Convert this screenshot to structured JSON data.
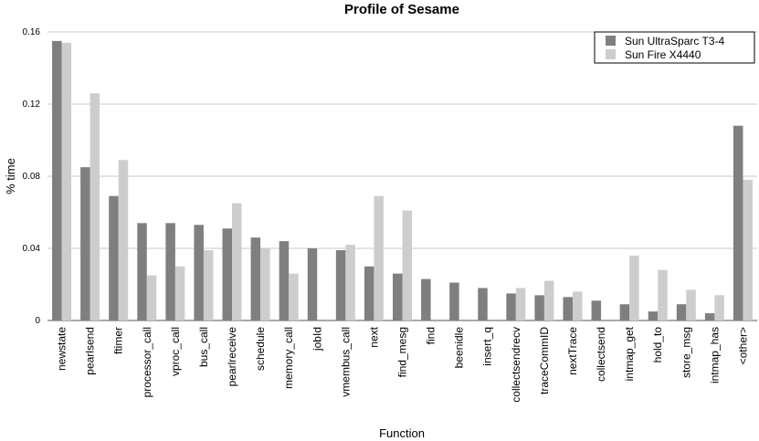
{
  "chart_data": {
    "type": "bar",
    "title": "Profile of Sesame",
    "xlabel": "Function",
    "ylabel": "% time",
    "ylim": [
      0,
      0.16
    ],
    "yticks": [
      0,
      0.04,
      0.08,
      0.12,
      0.16
    ],
    "ytick_labels": [
      "0",
      "0.04",
      "0.08",
      "0.12",
      "0.16"
    ],
    "grid": true,
    "legend_position": "top-right",
    "categories": [
      "newstate",
      "pearlsend",
      "ftimer",
      "processor_call",
      "vproc_call",
      "bus_call",
      "pearlreceive",
      "schedule",
      "memory_call",
      "jobId",
      "vmembus_call",
      "next",
      "find_mesg",
      "find",
      "beenidle",
      "insert_q",
      "collectsendrecv",
      "traceCommID",
      "nextTrace",
      "collectsend",
      "intmap_get",
      "hold_to",
      "store_msg",
      "intmap_has",
      "<other>"
    ],
    "series": [
      {
        "name": "Sun UltraSparc T3-4",
        "color": "#7f7f7f",
        "values": [
          0.155,
          0.085,
          0.069,
          0.054,
          0.054,
          0.053,
          0.051,
          0.046,
          0.044,
          0.04,
          0.039,
          0.03,
          0.026,
          0.023,
          0.021,
          0.018,
          0.015,
          0.014,
          0.013,
          0.011,
          0.009,
          0.005,
          0.009,
          0.004,
          0.108
        ]
      },
      {
        "name": "Sun Fire X4440",
        "color": "#cdcdcd",
        "values": [
          0.154,
          0.126,
          0.089,
          0.025,
          0.03,
          0.039,
          0.065,
          0.04,
          0.026,
          0,
          0.042,
          0.069,
          0.061,
          0,
          0,
          0,
          0.018,
          0.022,
          0.016,
          0,
          0.036,
          0.028,
          0.017,
          0.014,
          0.078
        ]
      }
    ]
  }
}
